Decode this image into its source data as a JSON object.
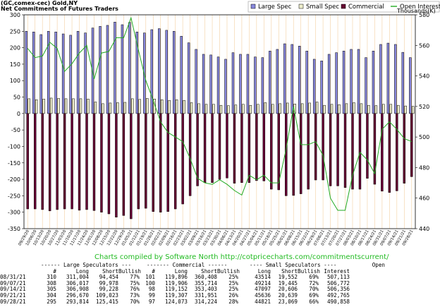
{
  "title_line1": "(GC,comex-cec) Gold,NY",
  "title_line2": "Net Commitments of Futures Traders",
  "thousands_label": "Thousands(K)",
  "credit": "Charts compiled by Software North  http://cotpricecharts.com/commitmentscurrent/",
  "legend": [
    {
      "name": "Large Spec",
      "color": "#8888dd"
    },
    {
      "name": "Small Spec",
      "color": "#eeeecc"
    },
    {
      "name": "Commercial",
      "color": "#660033"
    },
    {
      "name": "Open Interest",
      "color": "#22aa22"
    }
  ],
  "chart_data": {
    "type": "bar",
    "ylim_left": [
      -350,
      300
    ],
    "left_ticks": [
      -350,
      -300,
      -250,
      -200,
      -150,
      -100,
      -50,
      0,
      50,
      100,
      150,
      200,
      250,
      300
    ],
    "ylim_right": [
      440,
      580
    ],
    "right_ticks": [
      440,
      460,
      480,
      500,
      520,
      540,
      560,
      580
    ],
    "categories": [
      "09/29/20",
      "10/06/20",
      "10/13/20",
      "10/20/20",
      "10/27/20",
      "11/03/20",
      "11/10/20",
      "11/17/20",
      "11/24/20",
      "12/01/20",
      "12/08/20",
      "12/15/20",
      "12/22/20",
      "12/29/20",
      "01/05/21",
      "01/12/21",
      "01/19/21",
      "01/26/21",
      "02/02/21",
      "02/09/21",
      "02/16/21",
      "02/23/21",
      "03/02/21",
      "03/09/21",
      "03/16/21",
      "03/23/21",
      "03/30/21",
      "04/06/21",
      "04/13/21",
      "04/20/21",
      "04/27/21",
      "05/04/21",
      "05/11/21",
      "05/18/21",
      "05/25/21",
      "06/01/21",
      "06/08/21",
      "06/15/21",
      "06/22/21",
      "06/29/21",
      "07/06/21",
      "07/13/21",
      "07/20/21",
      "07/27/21",
      "08/03/21",
      "08/10/21",
      "08/17/21",
      "08/24/21",
      "08/31/21",
      "09/07/21",
      "09/14/21",
      "09/21/21",
      "09/28/21"
    ],
    "series": [
      {
        "name": "Large Spec",
        "values": [
          250,
          248,
          240,
          250,
          248,
          242,
          238,
          250,
          245,
          260,
          265,
          268,
          278,
          270,
          277,
          248,
          245,
          255,
          258,
          253,
          250,
          235,
          215,
          195,
          180,
          178,
          172,
          165,
          185,
          180,
          180,
          172,
          170,
          190,
          195,
          212,
          210,
          205,
          190,
          165,
          160,
          180,
          185,
          190,
          195,
          195,
          170,
          190,
          210,
          214,
          210,
          186,
          170
        ]
      },
      {
        "name": "Small Spec",
        "values": [
          45,
          42,
          44,
          47,
          46,
          45,
          45,
          45,
          44,
          35,
          30,
          32,
          33,
          34,
          45,
          43,
          46,
          44,
          42,
          40,
          42,
          40,
          33,
          30,
          28,
          28,
          25,
          24,
          26,
          28,
          25,
          28,
          33,
          28,
          30,
          32,
          29,
          30,
          32,
          35,
          25,
          28,
          27,
          30,
          33,
          30,
          25,
          24,
          28,
          28,
          25,
          23,
          22
        ]
      },
      {
        "name": "Commercial",
        "values": [
          -290,
          -290,
          -292,
          -296,
          -292,
          -290,
          -290,
          -294,
          -292,
          -295,
          -300,
          -305,
          -315,
          -310,
          -320,
          -290,
          -288,
          -298,
          -300,
          -298,
          -290,
          -275,
          -250,
          -220,
          -210,
          -210,
          -200,
          -196,
          -212,
          -210,
          -210,
          -204,
          -205,
          -230,
          -232,
          -250,
          -249,
          -244,
          -230,
          -202,
          -202,
          -220,
          -220,
          -225,
          -230,
          -230,
          -197,
          -215,
          -236,
          -240,
          -235,
          -212,
          -192
        ]
      },
      {
        "name": "Open Interest",
        "values": [
          558,
          552,
          553,
          562,
          558,
          543,
          548,
          555,
          560,
          538,
          555,
          556,
          565,
          565,
          578,
          557,
          537,
          524,
          510,
          503,
          500,
          497,
          486,
          473,
          470,
          469,
          472,
          469,
          465,
          462,
          475,
          472,
          475,
          470,
          470,
          492,
          520,
          495,
          495,
          497,
          488,
          460,
          452,
          452,
          475,
          490,
          485,
          476,
          505,
          510,
          505,
          499,
          497
        ]
      }
    ]
  },
  "table": {
    "group_headers": {
      "large": "------ Large Speculators ---",
      "commercial": "------- Commercial ------",
      "small": "---- Small Speculators ----",
      "open": "Open"
    },
    "col_headers": [
      "#",
      "Long",
      "Short",
      "Bullish",
      "#",
      "Long",
      "Short",
      "Bullish",
      "Long",
      "Short",
      "Bullish",
      "Interest"
    ],
    "rows": [
      [
        "08/31/21",
        "310",
        "311,004",
        "94,454",
        "77%",
        "101",
        "119,896",
        "360,408",
        "25%",
        "43514",
        "19,552",
        "69%",
        "507,113"
      ],
      [
        "09/07/21",
        "308",
        "306,017",
        "99,978",
        "75%",
        "100",
        "119,906",
        "355,714",
        "25%",
        "49214",
        "19,445",
        "72%",
        "506,772"
      ],
      [
        "09/14/21",
        "305",
        "306,908",
        "99,228",
        "76%",
        "98",
        "119,152",
        "353,403",
        "25%",
        "47097",
        "20,606",
        "70%",
        "506,356"
      ],
      [
        "09/21/21",
        "304",
        "296,670",
        "109,023",
        "73%",
        "99",
        "119,307",
        "331,951",
        "26%",
        "45636",
        "20,639",
        "69%",
        "492,765"
      ],
      [
        "09/28/21",
        "295",
        "293,814",
        "125,415",
        "70%",
        "97",
        "124,073",
        "314,224",
        "28%",
        "44821",
        "23,069",
        "66%",
        "490,858"
      ]
    ]
  }
}
